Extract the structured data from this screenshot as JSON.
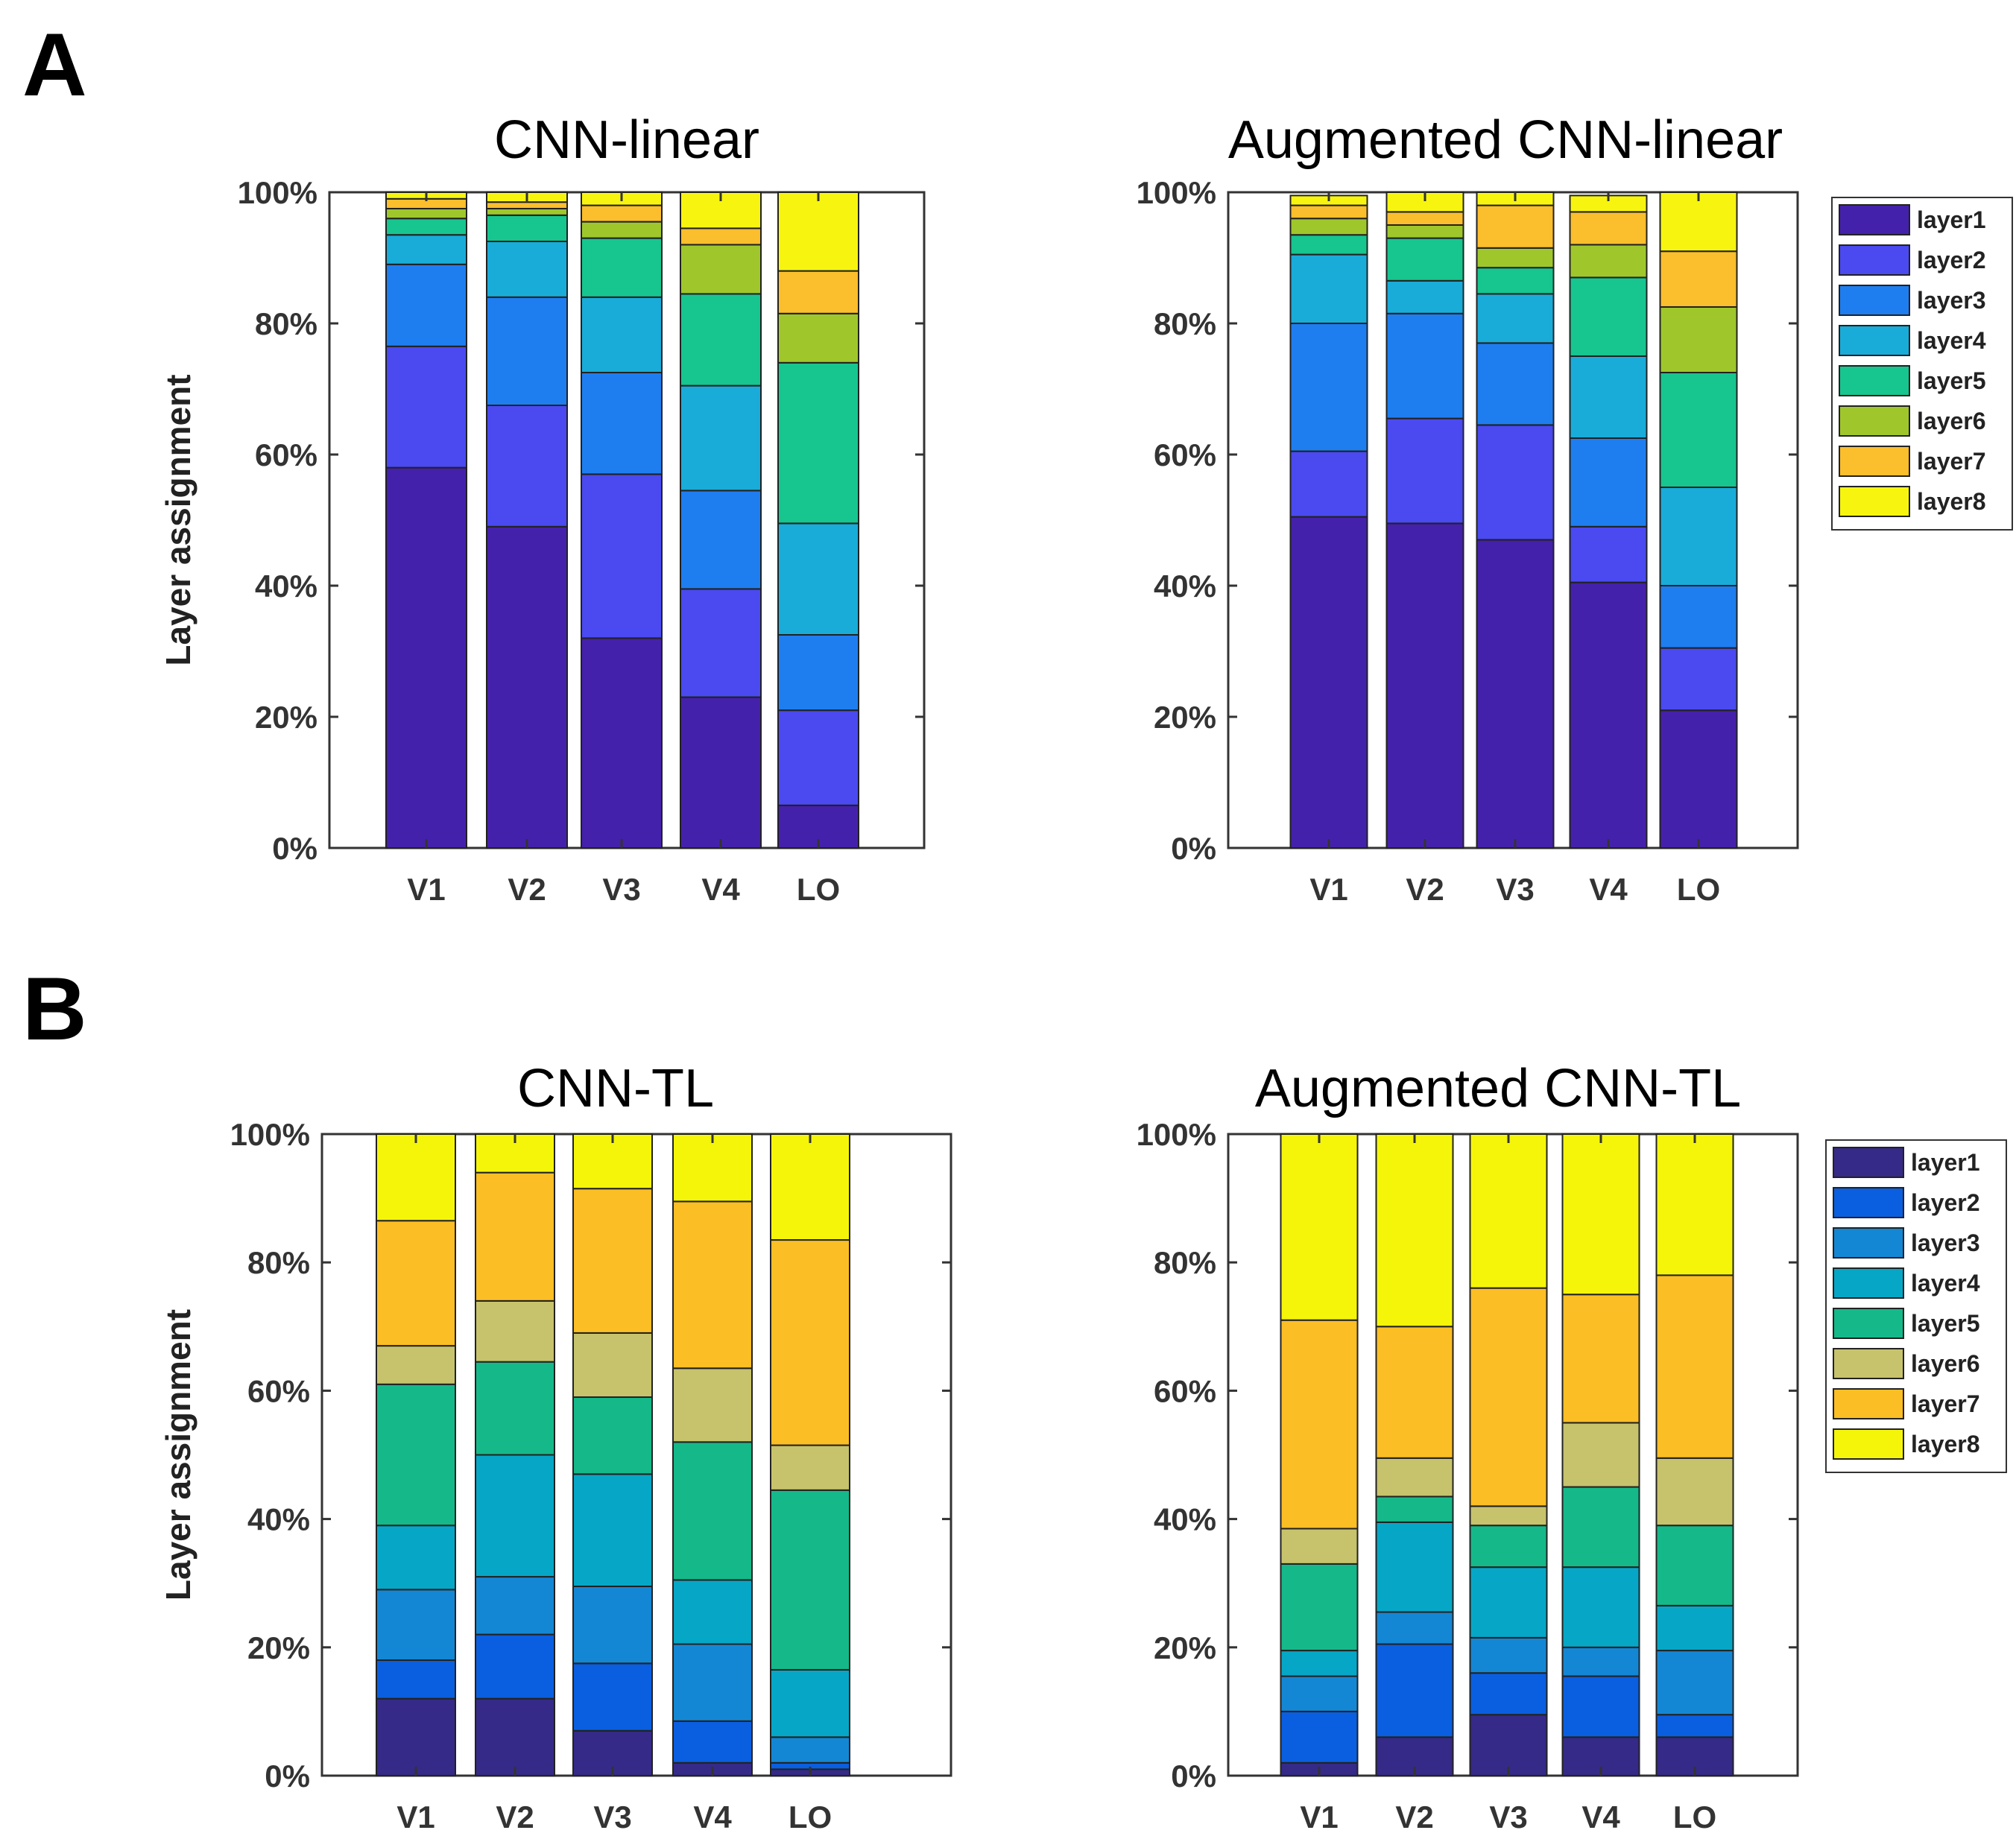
{
  "panels": [
    {
      "letter": "A"
    },
    {
      "letter": "B"
    }
  ],
  "chart_data": [
    {
      "type": "bar",
      "stacked": true,
      "title": "CNN-linear",
      "xlabel": "",
      "ylabel": "Layer assignment",
      "ylim": [
        0,
        100
      ],
      "yticks": [
        "0%",
        "20%",
        "40%",
        "60%",
        "80%",
        "100%"
      ],
      "categories": [
        "V1",
        "V2",
        "V3",
        "V4",
        "LO"
      ],
      "legend": false,
      "series": [
        {
          "name": "layer1",
          "color": "#4421ab",
          "values": [
            58,
            49,
            32,
            23,
            6.5
          ]
        },
        {
          "name": "layer2",
          "color": "#4a4af0",
          "values": [
            18.5,
            18.5,
            25,
            16.5,
            14.5
          ]
        },
        {
          "name": "layer3",
          "color": "#1e7ef0",
          "values": [
            12.5,
            16.5,
            15.5,
            15,
            11.5
          ]
        },
        {
          "name": "layer4",
          "color": "#19acd8",
          "values": [
            4.5,
            8.5,
            11.5,
            16,
            17
          ]
        },
        {
          "name": "layer5",
          "color": "#17c58f",
          "values": [
            2.5,
            4,
            9,
            14,
            24.5
          ]
        },
        {
          "name": "layer6",
          "color": "#9fc72c",
          "values": [
            1.5,
            1,
            2.5,
            7.5,
            7.5
          ]
        },
        {
          "name": "layer7",
          "color": "#fbbe2c",
          "values": [
            1.5,
            1,
            2.5,
            2.5,
            6.5
          ]
        },
        {
          "name": "layer8",
          "color": "#f7f50f",
          "values": [
            1,
            1.5,
            2,
            5.5,
            12
          ]
        }
      ]
    },
    {
      "type": "bar",
      "stacked": true,
      "title": "Augmented CNN-linear",
      "xlabel": "",
      "ylabel": "",
      "ylim": [
        0,
        100
      ],
      "yticks": [
        "0%",
        "20%",
        "40%",
        "60%",
        "80%",
        "100%"
      ],
      "categories": [
        "V1",
        "V2",
        "V3",
        "V4",
        "LO"
      ],
      "legend": "right",
      "series": [
        {
          "name": "layer1",
          "color": "#4421ab",
          "values": [
            50.5,
            49.5,
            47,
            40.5,
            21
          ]
        },
        {
          "name": "layer2",
          "color": "#4a4af0",
          "values": [
            10,
            16,
            17.5,
            8.5,
            9.5
          ]
        },
        {
          "name": "layer3",
          "color": "#1e7ef0",
          "values": [
            19.5,
            16,
            12.5,
            13.5,
            9.5
          ]
        },
        {
          "name": "layer4",
          "color": "#19acd8",
          "values": [
            10.5,
            5,
            7.5,
            12.5,
            15
          ]
        },
        {
          "name": "layer5",
          "color": "#17c58f",
          "values": [
            3,
            6.5,
            4,
            12,
            17.5
          ]
        },
        {
          "name": "layer6",
          "color": "#9fc72c",
          "values": [
            2.5,
            2,
            3,
            5,
            10
          ]
        },
        {
          "name": "layer7",
          "color": "#fbbe2c",
          "values": [
            2,
            2,
            6.5,
            5,
            8.5
          ]
        },
        {
          "name": "layer8",
          "color": "#f7f50f",
          "values": [
            1.5,
            3,
            2,
            2.5,
            9
          ]
        }
      ]
    },
    {
      "type": "bar",
      "stacked": true,
      "title": "CNN-TL",
      "xlabel": "",
      "ylabel": "Layer assignment",
      "ylim": [
        0,
        100
      ],
      "yticks": [
        "0%",
        "20%",
        "40%",
        "60%",
        "80%",
        "100%"
      ],
      "categories": [
        "V1",
        "V2",
        "V3",
        "V4",
        "LO"
      ],
      "legend": false,
      "series": [
        {
          "name": "layer1",
          "color": "#352a87",
          "values": [
            12,
            12,
            7,
            2,
            1
          ]
        },
        {
          "name": "layer2",
          "color": "#0a5fe0",
          "values": [
            6,
            10,
            10.5,
            6.5,
            1
          ]
        },
        {
          "name": "layer3",
          "color": "#1487d4",
          "values": [
            11,
            9,
            12,
            12,
            4
          ]
        },
        {
          "name": "layer4",
          "color": "#06a7c6",
          "values": [
            10,
            19,
            17.5,
            10,
            10.5
          ]
        },
        {
          "name": "layer5",
          "color": "#15b989",
          "values": [
            22,
            14.5,
            12,
            21.5,
            28
          ]
        },
        {
          "name": "layer6",
          "color": "#c7c36c",
          "values": [
            6,
            9.5,
            10,
            11.5,
            7
          ]
        },
        {
          "name": "layer7",
          "color": "#fbbe24",
          "values": [
            19.5,
            20,
            22.5,
            26,
            32
          ]
        },
        {
          "name": "layer8",
          "color": "#f5f50a",
          "values": [
            13.5,
            6,
            8.5,
            10.5,
            16.5
          ]
        }
      ]
    },
    {
      "type": "bar",
      "stacked": true,
      "title": "Augmented CNN-TL",
      "xlabel": "",
      "ylabel": "",
      "ylim": [
        0,
        100
      ],
      "yticks": [
        "0%",
        "20%",
        "40%",
        "60%",
        "80%",
        "100%"
      ],
      "categories": [
        "V1",
        "V2",
        "V3",
        "V4",
        "LO"
      ],
      "legend": "right",
      "series": [
        {
          "name": "layer1",
          "color": "#352a87",
          "values": [
            2,
            6,
            9.5,
            6,
            6
          ]
        },
        {
          "name": "layer2",
          "color": "#0a5fe0",
          "values": [
            8,
            14.5,
            6.5,
            9.5,
            3.5
          ]
        },
        {
          "name": "layer3",
          "color": "#1487d4",
          "values": [
            5.5,
            5,
            5.5,
            4.5,
            10
          ]
        },
        {
          "name": "layer4",
          "color": "#06a7c6",
          "values": [
            4,
            14,
            11,
            12.5,
            7
          ]
        },
        {
          "name": "layer5",
          "color": "#15b989",
          "values": [
            13.5,
            4,
            6.5,
            12.5,
            12.5
          ]
        },
        {
          "name": "layer6",
          "color": "#c7c36c",
          "values": [
            5.5,
            6,
            3,
            10,
            10.5
          ]
        },
        {
          "name": "layer7",
          "color": "#fbbe24",
          "values": [
            32.5,
            20.5,
            34,
            20,
            28.5
          ]
        },
        {
          "name": "layer8",
          "color": "#f5f50a",
          "values": [
            29,
            30,
            24,
            25,
            22
          ]
        }
      ]
    }
  ]
}
